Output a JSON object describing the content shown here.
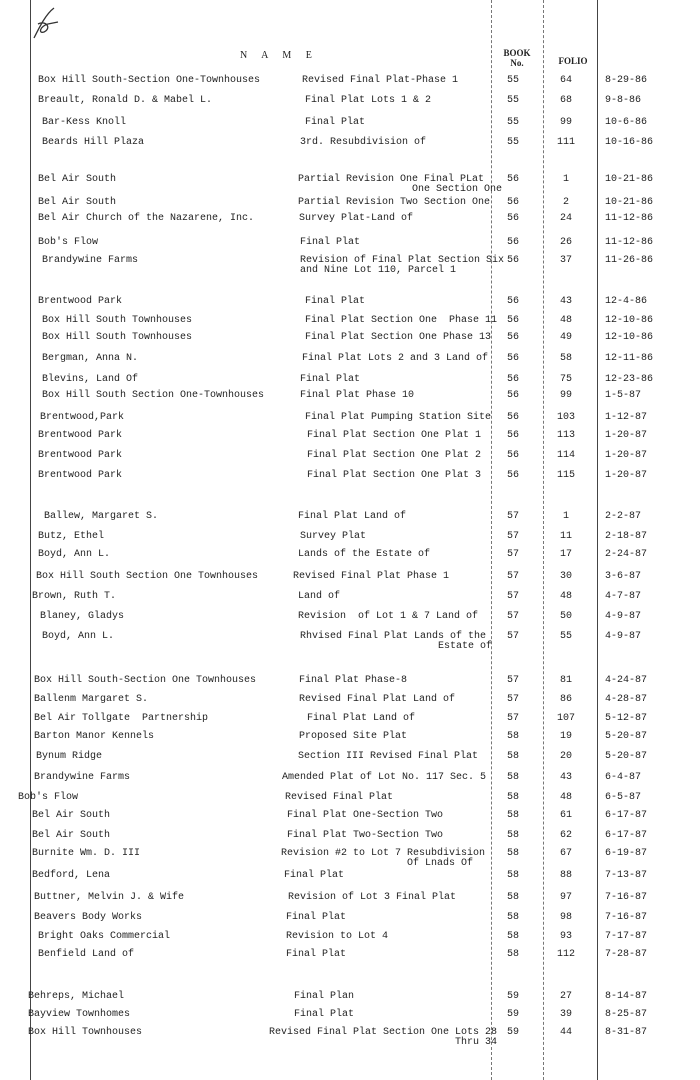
{
  "header": {
    "name": "N A M E",
    "book": "BOOK",
    "book_sub": "No.",
    "folio": "FOLIO"
  },
  "signature": "handwritten-mark",
  "rows": [
    {
      "name": "Box Hill South-Section One-Townhouses",
      "desc": "Revised Final Plat-Phase 1",
      "book": "55",
      "folio": "64",
      "date": "8-29-86"
    },
    {
      "name": "Breault, Ronald D. & Mabel L.",
      "desc": "Final Plat Lots 1 & 2",
      "book": "55",
      "folio": "68",
      "date": "9-8-86"
    },
    {
      "name": "Bar-Kess Knoll",
      "desc": "Final Plat",
      "book": "55",
      "folio": "99",
      "date": "10-6-86"
    },
    {
      "name": "Beards Hill Plaza",
      "desc": "3rd. Resubdivision of",
      "book": "55",
      "folio": "111",
      "date": "10-16-86"
    },
    {
      "name": "Bel Air South",
      "desc": "Partial Revision One Final PLat\n                   One Section One",
      "book": "56",
      "folio": "1",
      "date": "10-21-86"
    },
    {
      "name": "Bel Air South",
      "desc": "Partial Revision Two Section One",
      "book": "56",
      "folio": "2",
      "date": "10-21-86"
    },
    {
      "name": "Bel Air Church of the Nazarene, Inc.",
      "desc": "Survey Plat-Land of",
      "book": "56",
      "folio": "24",
      "date": "11-12-86"
    },
    {
      "name": "Bob's Flow",
      "desc": "Final Plat",
      "book": "56",
      "folio": "26",
      "date": "11-12-86"
    },
    {
      "name": "Brandywine Farms",
      "desc": "Revision of Final Plat Section Six\nand Nine Lot 110, Parcel 1",
      "book": "56",
      "folio": "37",
      "date": "11-26-86"
    },
    {
      "name": "Brentwood Park",
      "desc": "Final Plat",
      "book": "56",
      "folio": "43",
      "date": "12-4-86"
    },
    {
      "name": "Box Hill South Townhouses",
      "desc": "Final Plat Section One  Phase 11",
      "book": "56",
      "folio": "48",
      "date": "12-10-86"
    },
    {
      "name": "Box Hill South Townhouses",
      "desc": "Final Plat Section One Phase 13",
      "book": "56",
      "folio": "49",
      "date": "12-10-86"
    },
    {
      "name": "Bergman, Anna N.",
      "desc": "Final Plat Lots 2 and 3 Land of",
      "book": "56",
      "folio": "58",
      "date": "12-11-86"
    },
    {
      "name": "Blevins, Land Of",
      "desc": "Final Plat",
      "book": "56",
      "folio": "75",
      "date": "12-23-86"
    },
    {
      "name": "Box Hill South Section One-Townhouses",
      "desc": "Final Plat Phase 10",
      "book": "56",
      "folio": "99",
      "date": "1-5-87"
    },
    {
      "name": "Brentwood,Park",
      "desc": "Final Plat Pumping Station Site",
      "book": "56",
      "folio": "103",
      "date": "1-12-87"
    },
    {
      "name": "Brentwood Park",
      "desc": "Final Plat Section One Plat 1",
      "book": "56",
      "folio": "113",
      "date": "1-20-87"
    },
    {
      "name": "Brentwood Park",
      "desc": "Final Plat Section One Plat 2",
      "book": "56",
      "folio": "114",
      "date": "1-20-87"
    },
    {
      "name": "Brentwood Park",
      "desc": "Final Plat Section One Plat 3",
      "book": "56",
      "folio": "115",
      "date": "1-20-87"
    },
    {
      "name": "Ballew, Margaret S.",
      "desc": "Final Plat Land of",
      "book": "57",
      "folio": "1",
      "date": "2-2-87"
    },
    {
      "name": "Butz, Ethel",
      "desc": "Survey Plat",
      "book": "57",
      "folio": "11",
      "date": "2-18-87"
    },
    {
      "name": "Boyd, Ann L.",
      "desc": "Lands of the Estate of",
      "book": "57",
      "folio": "17",
      "date": "2-24-87"
    },
    {
      "name": "Box Hill South Section One Townhouses",
      "desc": "Revised Final Plat Phase 1",
      "book": "57",
      "folio": "30",
      "date": "3-6-87"
    },
    {
      "name": "Brown, Ruth T.",
      "desc": "Land of",
      "book": "57",
      "folio": "48",
      "date": "4-7-87"
    },
    {
      "name": "Blaney, Gladys",
      "desc": "Revision  of Lot 1 & 7 Land of",
      "book": "57",
      "folio": "50",
      "date": "4-9-87"
    },
    {
      "name": "Boyd, Ann L.",
      "desc": "Rhvised Final Plat Lands of the\n                       Estate of",
      "book": "57",
      "folio": "55",
      "date": "4-9-87"
    },
    {
      "name": "Box Hill South-Section One Townhouses",
      "desc": "Final Plat Phase-8",
      "book": "57",
      "folio": "81",
      "date": "4-24-87"
    },
    {
      "name": "Ballenm Margaret S.",
      "desc": "Revised Final Plat Land of",
      "book": "57",
      "folio": "86",
      "date": "4-28-87"
    },
    {
      "name": "Bel Air Tollgate  Partnership",
      "desc": "Final Plat Land of",
      "book": "57",
      "folio": "107",
      "date": "5-12-87"
    },
    {
      "name": "Barton Manor Kennels",
      "desc": "Proposed Site Plat",
      "book": "58",
      "folio": "19",
      "date": "5-20-87"
    },
    {
      "name": "Bynum Ridge",
      "desc": "Section III Revised Final Plat",
      "book": "58",
      "folio": "20",
      "date": "5-20-87"
    },
    {
      "name": "Brandywine Farms",
      "desc": "Amended Plat of Lot No. 117 Sec. 5",
      "book": "58",
      "folio": "43",
      "date": "6-4-87"
    },
    {
      "name": "Bob's Flow",
      "desc": "Revised Final Plat",
      "book": "58",
      "folio": "48",
      "date": "6-5-87"
    },
    {
      "name": "Bel Air South",
      "desc": "Final Plat One-Section Two",
      "book": "58",
      "folio": "61",
      "date": "6-17-87"
    },
    {
      "name": "Bel Air South",
      "desc": "Final Plat Two-Section Two",
      "book": "58",
      "folio": "62",
      "date": "6-17-87"
    },
    {
      "name": "Burnite Wm. D. III",
      "desc": "Revision #2 to Lot 7 Resubdivision\n                     Of Lnads Of",
      "book": "58",
      "folio": "67",
      "date": "6-19-87"
    },
    {
      "name": "Bedford, Lena",
      "desc": "Final Plat",
      "book": "58",
      "folio": "88",
      "date": "7-13-87"
    },
    {
      "name": "Buttner, Melvin J. & Wife",
      "desc": "Revision of Lot 3 Final Plat",
      "book": "58",
      "folio": "97",
      "date": "7-16-87"
    },
    {
      "name": "Beavers Body Works",
      "desc": "Final Plat",
      "book": "58",
      "folio": "98",
      "date": "7-16-87"
    },
    {
      "name": "Bright Oaks Commercial",
      "desc": "Revision to Lot 4",
      "book": "58",
      "folio": "93",
      "date": "7-17-87"
    },
    {
      "name": "Benfield Land of",
      "desc": "Final Plat",
      "book": "58",
      "folio": "112",
      "date": "7-28-87"
    },
    {
      "name": "Behreps, Michael",
      "desc": "Final Plan",
      "book": "59",
      "folio": "27",
      "date": "8-14-87"
    },
    {
      "name": "Bayview Townhomes",
      "desc": "Final Plat",
      "book": "59",
      "folio": "39",
      "date": "8-25-87"
    },
    {
      "name": "Box Hill Townhouses",
      "desc": "Revised Final Plat Section One Lots 28\n                               Thru 34",
      "book": "59",
      "folio": "44",
      "date": "8-31-87"
    }
  ]
}
